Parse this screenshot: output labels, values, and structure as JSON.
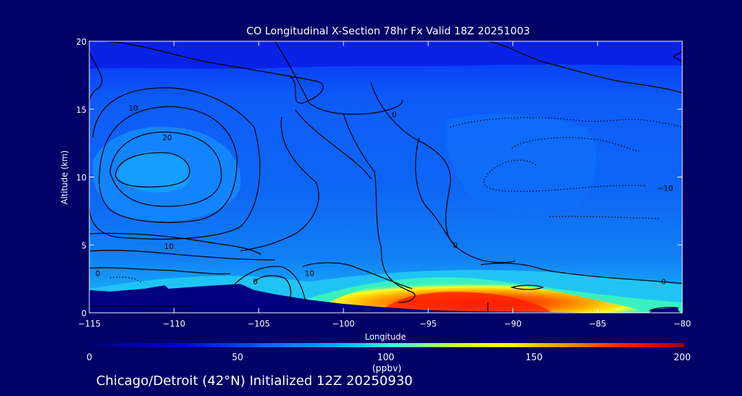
{
  "chart_data": {
    "type": "heatmap",
    "title": "CO Longitudinal X-Section 78hr  Fx Valid 18Z 20251003",
    "xlabel": "Longitude",
    "ylabel": "Altitude (km)",
    "xlim": [
      -115,
      -80
    ],
    "ylim": [
      0,
      20
    ],
    "x_ticks": [
      -115,
      -110,
      -105,
      -100,
      -95,
      -90,
      -85,
      -80
    ],
    "x_tick_labels": [
      "−115",
      "−110",
      "−105",
      "−100",
      "−95",
      "−90",
      "−85",
      "−80"
    ],
    "y_ticks": [
      0,
      5,
      10,
      15,
      20
    ],
    "y_tick_labels": [
      "0",
      "5",
      "10",
      "15",
      "20"
    ],
    "colorbar": {
      "label": "(ppbv)",
      "min": 0,
      "max": 200,
      "ticks": [
        0,
        50,
        100,
        150,
        200
      ],
      "tick_labels": [
        "0",
        "50",
        "100",
        "150",
        "200"
      ]
    },
    "contour_labels": [
      {
        "text": "10",
        "lon": -112.4,
        "alt": 15.1
      },
      {
        "text": "20",
        "lon": -110.4,
        "alt": 12.9
      },
      {
        "text": "0",
        "lon": -97.0,
        "alt": 14.6
      },
      {
        "text": "−10",
        "lon": -81.0,
        "alt": 9.2
      },
      {
        "text": "10",
        "lon": -110.3,
        "alt": 4.9
      },
      {
        "text": "0",
        "lon": -114.5,
        "alt": 2.9
      },
      {
        "text": "0",
        "lon": -105.2,
        "alt": 2.3
      },
      {
        "text": "10",
        "lon": -102.0,
        "alt": 2.9
      },
      {
        "text": "0",
        "lon": -93.4,
        "alt": 5.0
      },
      {
        "text": "0",
        "lon": -81.1,
        "alt": 2.3
      }
    ],
    "footer": "Chicago/Detroit (42°N) Initialized 12Z 20250930"
  }
}
